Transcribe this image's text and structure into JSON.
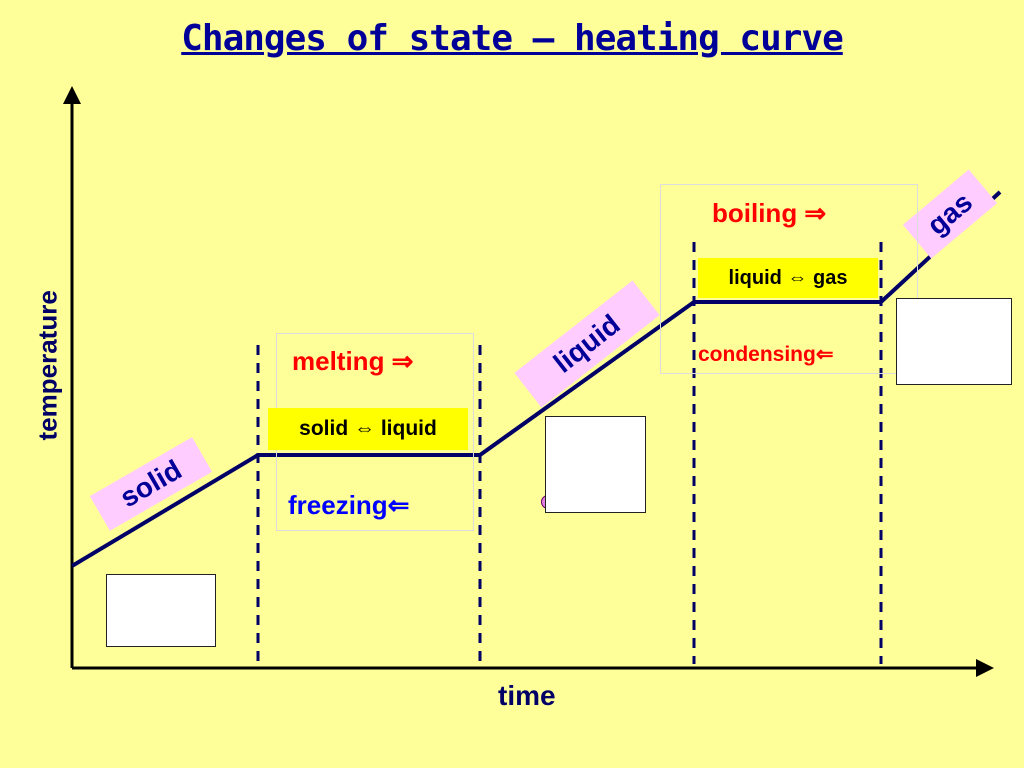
{
  "title": "Changes of state – heating curve",
  "axes": {
    "y_label": "temperature",
    "x_label": "time"
  },
  "phases": {
    "solid": "solid",
    "liquid": "liquid",
    "gas": "gas"
  },
  "transitions": {
    "melting": "melting ⇒",
    "solid_liquid": "solid ⇔ liquid",
    "freezing": "freezing⇐",
    "boiling": "boiling ⇒",
    "liquid_gas": "liquid ⇔ gas",
    "condensing": "condensing⇐"
  },
  "colors": {
    "background": "#ffff99",
    "title": "#000099",
    "curve": "#000066",
    "phase_label_bg": "#ffccff",
    "highlight": "#ffff00",
    "heating_text": "#ff0000",
    "cooling_text": "#0000ff",
    "particle": "#e080e0"
  }
}
